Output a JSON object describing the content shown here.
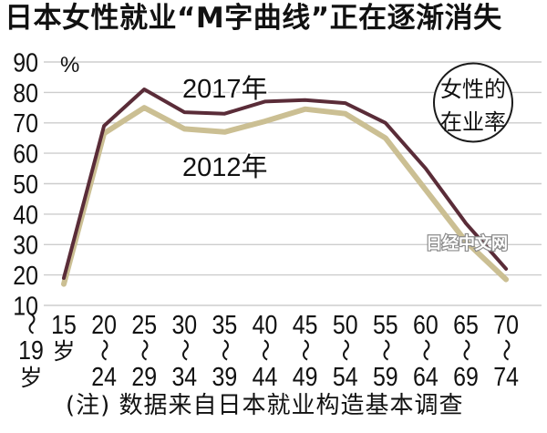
{
  "chart_data": {
    "type": "line",
    "title": "日本女性就业“M字曲线”正在逐渐消失",
    "ylabel": [
      "女性的",
      "在业率"
    ],
    "y_unit": "%",
    "ylim": [
      10,
      90
    ],
    "yticks": [
      90,
      80,
      70,
      60,
      50,
      40,
      30,
      20,
      10
    ],
    "grid": true,
    "legend": "inline",
    "categories": [
      {
        "lines": [
          "15",
          "岁"
        ],
        "side": [
          "〜",
          "19",
          "岁"
        ]
      },
      {
        "lines": [
          "20",
          "〜",
          "24"
        ]
      },
      {
        "lines": [
          "25",
          "〜",
          "29"
        ]
      },
      {
        "lines": [
          "30",
          "〜",
          "34"
        ]
      },
      {
        "lines": [
          "35",
          "〜",
          "39"
        ]
      },
      {
        "lines": [
          "40",
          "〜",
          "44"
        ]
      },
      {
        "lines": [
          "45",
          "〜",
          "49"
        ]
      },
      {
        "lines": [
          "50",
          "〜",
          "54"
        ]
      },
      {
        "lines": [
          "55",
          "〜",
          "59"
        ]
      },
      {
        "lines": [
          "60",
          "〜",
          "64"
        ]
      },
      {
        "lines": [
          "65",
          "〜",
          "69"
        ]
      },
      {
        "lines": [
          "70",
          "〜",
          "74"
        ]
      }
    ],
    "series": [
      {
        "name": "2017年",
        "color": "#5a2c38",
        "values": [
          19,
          69,
          81,
          73.5,
          73,
          77,
          77.5,
          76.5,
          70,
          55,
          37,
          22
        ]
      },
      {
        "name": "2012年",
        "color": "#cbbf93",
        "values": [
          17,
          66.5,
          75,
          68,
          67,
          70.5,
          74.5,
          73,
          65,
          48,
          31,
          18.5
        ]
      }
    ],
    "note": "(注) 数据来自日本就业构造基本调查"
  },
  "watermark": "日经中文网"
}
